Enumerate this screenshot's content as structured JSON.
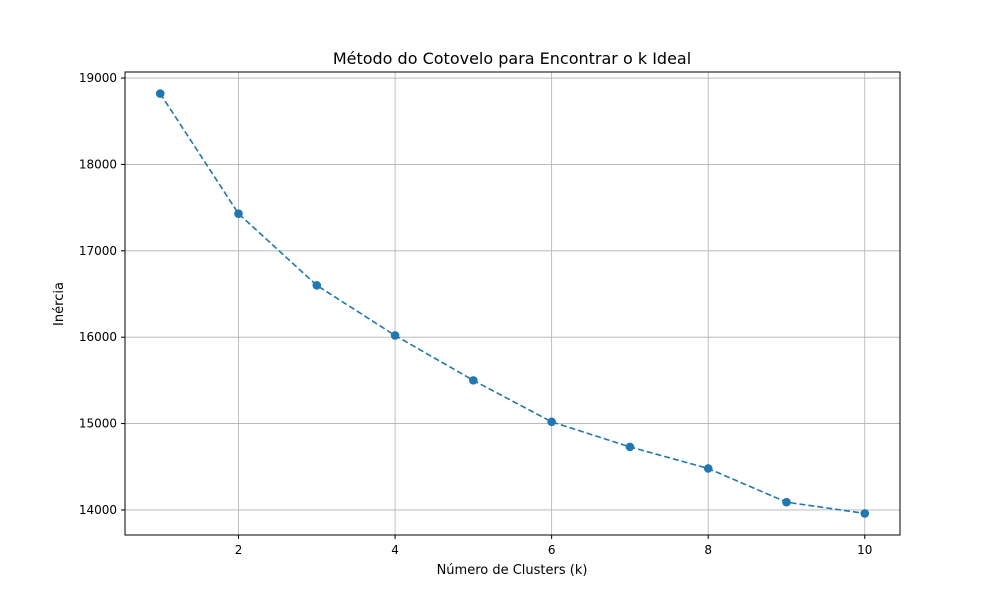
{
  "chart_data": {
    "type": "line",
    "title": "Método do Cotovelo para Encontrar o k Ideal",
    "xlabel": "Número de Clusters (k)",
    "ylabel": "Inércia",
    "x": [
      1,
      2,
      3,
      4,
      5,
      6,
      7,
      8,
      9,
      10
    ],
    "series": [
      {
        "values": [
          18820,
          17430,
          16600,
          16020,
          15500,
          15020,
          14730,
          14480,
          14090,
          13960
        ],
        "color": "#1f77b4",
        "line_style": "dashed",
        "marker": "circle"
      }
    ],
    "xlim": [
      0.55,
      10.45
    ],
    "ylim": [
      13710,
      19070
    ],
    "xticks": [
      2,
      4,
      6,
      8,
      10
    ],
    "yticks": [
      14000,
      15000,
      16000,
      17000,
      18000,
      19000
    ],
    "grid": true
  }
}
